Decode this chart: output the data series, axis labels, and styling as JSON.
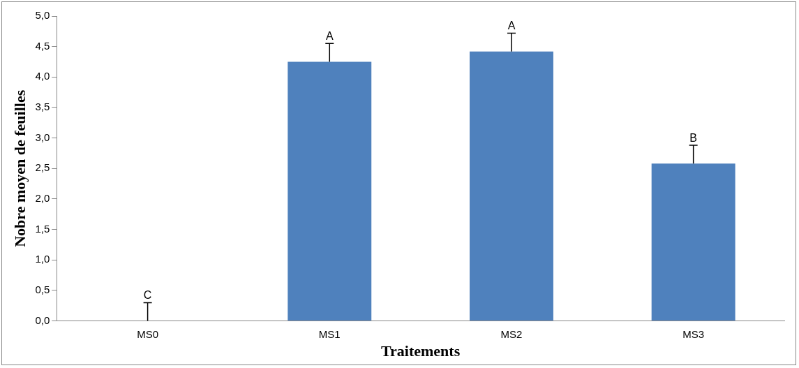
{
  "chart_data": {
    "type": "bar",
    "xlabel": "Traitements",
    "ylabel": "Nobre moyen de feuilles",
    "categories": [
      "MS0",
      "MS1",
      "MS2",
      "MS3"
    ],
    "values": [
      0,
      4.25,
      4.42,
      2.58
    ],
    "errors": [
      [
        0,
        0.3
      ],
      [
        4.25,
        4.55
      ],
      [
        4.42,
        4.72
      ],
      [
        2.58,
        2.88
      ]
    ],
    "color": "#4f81bd",
    "ylim": [
      0,
      5
    ],
    "yticks": [
      {
        "value": 0,
        "label": "0,0"
      },
      {
        "value": 0.5,
        "label": "0,5"
      },
      {
        "value": 1,
        "label": "1,0"
      },
      {
        "value": 1.5,
        "label": "1,5"
      },
      {
        "value": 2,
        "label": "2,0"
      },
      {
        "value": 2.5,
        "label": "2,5"
      },
      {
        "value": 3,
        "label": "3,0"
      },
      {
        "value": 3.5,
        "label": "3,5"
      },
      {
        "value": 4,
        "label": "4,0"
      },
      {
        "value": 4.5,
        "label": "4,5"
      },
      {
        "value": 5,
        "label": "5,0"
      }
    ],
    "annotations": [
      {
        "text": "C",
        "x": "MS0",
        "y": 0.3
      },
      {
        "text": "A",
        "x": "MS1",
        "y": 4.55
      },
      {
        "text": "A",
        "x": "MS2",
        "y": 4.72
      },
      {
        "text": "B",
        "x": "MS3",
        "y": 2.88
      }
    ],
    "grid": false,
    "legend": false
  }
}
